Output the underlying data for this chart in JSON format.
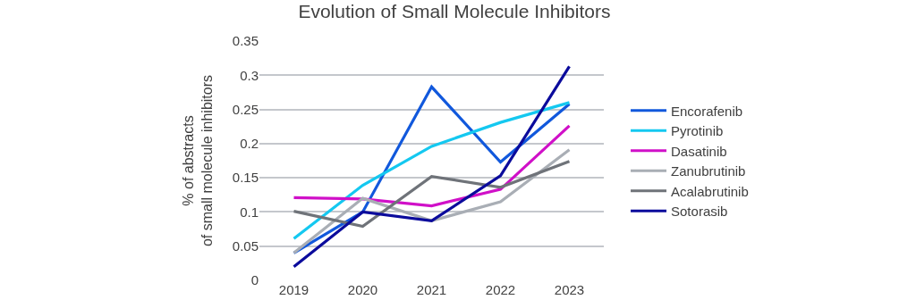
{
  "chart_data": {
    "type": "line",
    "title": "Evolution of Small Molecule Inhibitors",
    "ylabel": "% of abstracts\nof small molecule inhibitors",
    "categories": [
      "2019",
      "2020",
      "2021",
      "2022",
      "2023"
    ],
    "series": [
      {
        "name": "Encorafenib",
        "color": "#1158dc",
        "values": [
          0.04,
          0.1,
          0.283,
          0.173,
          0.258
        ]
      },
      {
        "name": "Pyrotinib",
        "color": "#14c8f0",
        "values": [
          0.061,
          0.139,
          0.196,
          0.231,
          0.26
        ]
      },
      {
        "name": "Dasatinib",
        "color": "#d010c8",
        "values": [
          0.121,
          0.119,
          0.109,
          0.133,
          0.226
        ]
      },
      {
        "name": "Zanubrutinib",
        "color": "#a9aeb5",
        "values": [
          0.04,
          0.12,
          0.087,
          0.115,
          0.191
        ]
      },
      {
        "name": "Acalabrutinib",
        "color": "#6f7379",
        "values": [
          0.101,
          0.079,
          0.152,
          0.136,
          0.174
        ]
      },
      {
        "name": "Sotorasib",
        "color": "#0b0b9c",
        "values": [
          0.02,
          0.1,
          0.087,
          0.153,
          0.313
        ]
      }
    ],
    "ylim": [
      0,
      0.35
    ],
    "yticks": [
      0,
      0.05,
      0.1,
      0.15,
      0.2,
      0.25,
      0.3,
      0.35
    ],
    "grid": "y",
    "legend": "right"
  }
}
